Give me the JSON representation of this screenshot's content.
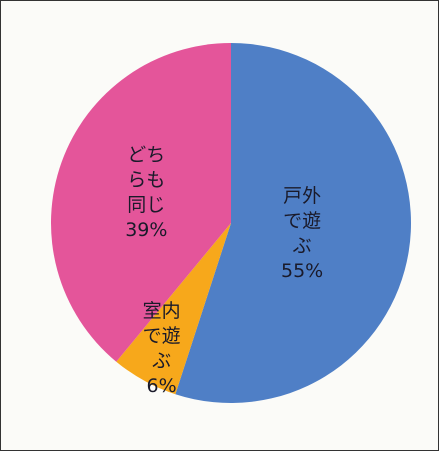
{
  "chart_data": {
    "type": "pie",
    "categories": [
      "戸外で遊ぶ",
      "室内で遊ぶ",
      "どちらも同じ"
    ],
    "values": [
      55,
      6,
      39
    ],
    "value_labels": [
      "55%",
      "6%",
      "39%"
    ],
    "colors": [
      "#4f7fc6",
      "#f7a81b",
      "#e4559a"
    ]
  }
}
